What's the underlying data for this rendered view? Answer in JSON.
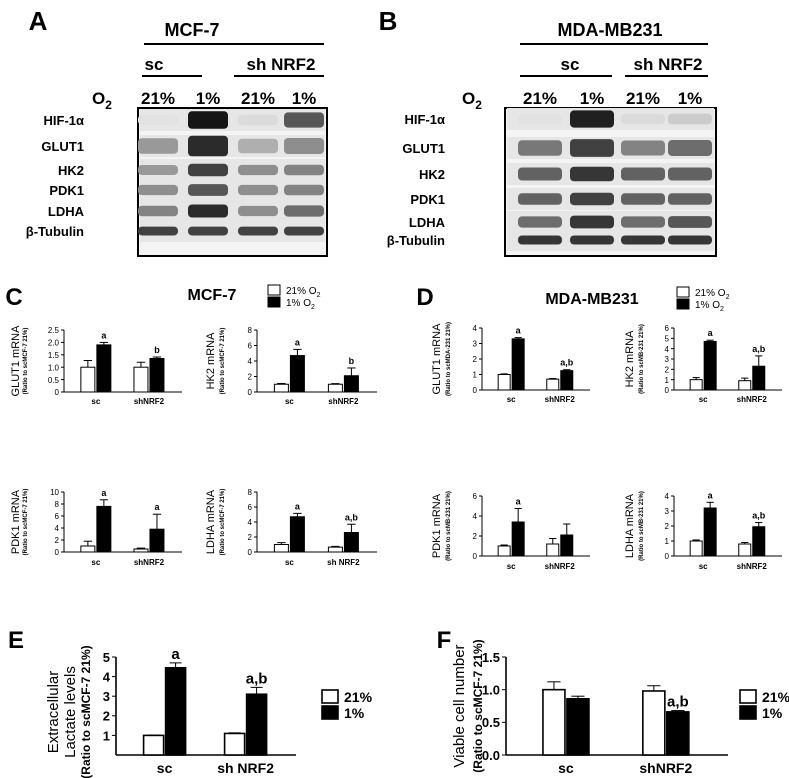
{
  "panels": {
    "A": {
      "letter": "A",
      "cell_line": "MCF-7",
      "group_sc": "sc",
      "group_sh": "sh NRF2",
      "o2_label": "O",
      "o2_sub": "2",
      "lanes": [
        "21%",
        "1%",
        "21%",
        "1%"
      ],
      "proteins": [
        "HIF-1α",
        "GLUT1",
        "HK2",
        "PDK1",
        "LDHA",
        "β-Tubulin"
      ],
      "band_intensity": [
        [
          0.02,
          0.95,
          0.05,
          0.65
        ],
        [
          0.35,
          0.85,
          0.25,
          0.4
        ],
        [
          0.35,
          0.75,
          0.4,
          0.45
        ],
        [
          0.4,
          0.65,
          0.4,
          0.45
        ],
        [
          0.45,
          0.85,
          0.4,
          0.55
        ],
        [
          0.75,
          0.75,
          0.75,
          0.75
        ]
      ]
    },
    "B": {
      "letter": "B",
      "cell_line": "MDA-MB231",
      "group_sc": "sc",
      "group_sh": "sh NRF2",
      "o2_label": "O",
      "o2_sub": "2",
      "lanes": [
        "21%",
        "1%",
        "21%",
        "1%"
      ],
      "proteins": [
        "HIF-1α",
        "GLUT1",
        "HK2",
        "PDK1",
        "LDHA",
        "β-Tubulin"
      ],
      "band_intensity": [
        [
          0.02,
          0.9,
          0.05,
          0.12
        ],
        [
          0.5,
          0.75,
          0.45,
          0.55
        ],
        [
          0.6,
          0.8,
          0.6,
          0.6
        ],
        [
          0.6,
          0.75,
          0.6,
          0.6
        ],
        [
          0.55,
          0.8,
          0.55,
          0.65
        ],
        [
          0.8,
          0.8,
          0.8,
          0.8
        ]
      ]
    },
    "C": {
      "letter": "C",
      "title": "MCF-7"
    },
    "D": {
      "letter": "D",
      "title": "MDA-MB231"
    },
    "E": {
      "letter": "E"
    },
    "F": {
      "letter": "F"
    }
  },
  "legend_cd": {
    "items": [
      {
        "label": "21% O",
        "sub": "2",
        "fill": "#ffffff"
      },
      {
        "label": "1% O",
        "sub": "2",
        "fill": "#000000"
      }
    ]
  },
  "chart_data": [
    {
      "id": "c1",
      "type": "bar",
      "categories": [
        "sc",
        "shNRF2"
      ],
      "series": [
        {
          "values": [
            1.0,
            1.0
          ],
          "errors": [
            0.27,
            0.2
          ]
        },
        {
          "values": [
            1.9,
            1.35
          ],
          "errors": [
            0.1,
            0.06
          ]
        }
      ],
      "annotations": [
        "a",
        "b"
      ],
      "ylabel": "GLUT1 mRNA",
      "ysublabel": "(Ratio to scMCF-7 21%)",
      "ylim": [
        0,
        2.5
      ],
      "yticks": [
        "0",
        "0.5",
        "1.0",
        "1.5",
        "2.0",
        "2.5"
      ]
    },
    {
      "id": "c2",
      "type": "bar",
      "categories": [
        "sc",
        "shNRF2"
      ],
      "series": [
        {
          "values": [
            1.0,
            1.0
          ],
          "errors": [
            0.1,
            0.08
          ]
        },
        {
          "values": [
            4.7,
            2.1
          ],
          "errors": [
            0.8,
            1.0
          ]
        }
      ],
      "annotations": [
        "a",
        "b"
      ],
      "ylabel": "HK2 mRNA",
      "ysublabel": "(Ratio to scMCF-7 21%)",
      "ylim": [
        0,
        8
      ],
      "yticks": [
        "0",
        "2",
        "4",
        "6",
        "8"
      ]
    },
    {
      "id": "c3",
      "type": "bar",
      "categories": [
        "sc",
        "shNRF2"
      ],
      "series": [
        {
          "values": [
            1.0,
            0.5
          ],
          "errors": [
            0.8,
            0.15
          ]
        },
        {
          "values": [
            7.6,
            3.8
          ],
          "errors": [
            1.1,
            2.5
          ]
        }
      ],
      "annotations": [
        "a",
        "a"
      ],
      "ylabel": "PDK1 mRNA",
      "ysublabel": "(Ratio to scMCF-7 21%)",
      "ylim": [
        0,
        10
      ],
      "yticks": [
        "0",
        "2",
        "4",
        "6",
        "8",
        "10"
      ]
    },
    {
      "id": "c4",
      "type": "bar",
      "categories": [
        "sc",
        "sh NRF2"
      ],
      "series": [
        {
          "values": [
            1.0,
            0.65
          ],
          "errors": [
            0.25,
            0.1
          ]
        },
        {
          "values": [
            4.7,
            2.6
          ],
          "errors": [
            0.45,
            1.1
          ]
        }
      ],
      "annotations": [
        "a",
        "a,b"
      ],
      "ylabel": "LDHA mRNA",
      "ysublabel": "(Ratio to scMCF-7 21%)",
      "ylim": [
        0,
        8
      ],
      "yticks": [
        "0",
        "2",
        "4",
        "6",
        "8"
      ]
    },
    {
      "id": "d1",
      "type": "bar",
      "categories": [
        "sc",
        "shNRF2"
      ],
      "series": [
        {
          "values": [
            1.0,
            0.7
          ],
          "errors": [
            0.04,
            0.04
          ]
        },
        {
          "values": [
            3.3,
            1.25
          ],
          "errors": [
            0.08,
            0.06
          ]
        }
      ],
      "annotations": [
        "a",
        "a,b"
      ],
      "ylabel": "GLUT1 mRNA",
      "ysublabel": "(Ratio to scMDA-231 21%)",
      "ylim": [
        0,
        4
      ],
      "yticks": [
        "0",
        "1",
        "2",
        "3",
        "4"
      ]
    },
    {
      "id": "d2",
      "type": "bar",
      "categories": [
        "sc",
        "shNRF2"
      ],
      "series": [
        {
          "values": [
            1.0,
            0.9
          ],
          "errors": [
            0.2,
            0.25
          ]
        },
        {
          "values": [
            4.7,
            2.3
          ],
          "errors": [
            0.12,
            1.0
          ]
        }
      ],
      "annotations": [
        "a",
        "a,b"
      ],
      "ylabel": "HK2 mRNA",
      "ysublabel": "(Ratio to scMB-231 21%)",
      "ylim": [
        0,
        6
      ],
      "yticks": [
        "0",
        "1",
        "2",
        "3",
        "4",
        "5",
        "6"
      ]
    },
    {
      "id": "d3",
      "type": "bar",
      "categories": [
        "sc",
        "shNRF2"
      ],
      "series": [
        {
          "values": [
            1.0,
            1.2
          ],
          "errors": [
            0.1,
            0.55
          ]
        },
        {
          "values": [
            3.4,
            2.1
          ],
          "errors": [
            1.35,
            1.1
          ]
        }
      ],
      "annotations": [
        "a",
        ""
      ],
      "ylabel": "PDK1 mRNA",
      "ysublabel": "(Ratio to scMB-231 21%)",
      "ylim": [
        0,
        6
      ],
      "yticks": [
        "0",
        "2",
        "4",
        "6"
      ]
    },
    {
      "id": "d4",
      "type": "bar",
      "categories": [
        "sc",
        "shNRF2"
      ],
      "series": [
        {
          "values": [
            1.0,
            0.8
          ],
          "errors": [
            0.07,
            0.1
          ]
        },
        {
          "values": [
            3.2,
            1.95
          ],
          "errors": [
            0.38,
            0.28
          ]
        }
      ],
      "annotations": [
        "a",
        "a,b"
      ],
      "ylabel": "LDHA mRNA",
      "ysublabel": "(Ratio to scMB-231 21%)",
      "ylim": [
        0,
        4
      ],
      "yticks": [
        "0",
        "1",
        "2",
        "3",
        "4"
      ]
    },
    {
      "id": "e",
      "type": "bar",
      "categories": [
        "sc",
        "sh NRF2"
      ],
      "series": [
        {
          "name": "21%",
          "values": [
            1.0,
            1.1
          ],
          "errors": [
            0.02,
            0.03
          ]
        },
        {
          "name": "1%",
          "values": [
            4.45,
            3.1
          ],
          "errors": [
            0.25,
            0.35
          ]
        }
      ],
      "annotations": [
        "a",
        "a,b"
      ],
      "ylabel": "Extracellular",
      "ylabel2": "Lactate levels",
      "ysublabel": "(Ratio to scMCF-7 21%)",
      "ylim": [
        0,
        5
      ],
      "yticks": [
        "1",
        "2",
        "3",
        "4",
        "5"
      ]
    },
    {
      "id": "f",
      "type": "bar",
      "categories": [
        "sc",
        "shNRF2"
      ],
      "series": [
        {
          "name": "21%",
          "values": [
            1.0,
            0.98
          ],
          "errors": [
            0.12,
            0.08
          ]
        },
        {
          "name": "1%",
          "values": [
            0.86,
            0.66
          ],
          "errors": [
            0.04,
            0.02
          ]
        }
      ],
      "annotations": [
        "",
        "a,b"
      ],
      "ylabel": "Viable cell number",
      "ysublabel": "(Ratio to scMCF-7 21%)",
      "ylim": [
        0,
        1.5
      ],
      "yticks": [
        "0.0",
        "0.5",
        "1.0",
        "1.5"
      ]
    }
  ]
}
